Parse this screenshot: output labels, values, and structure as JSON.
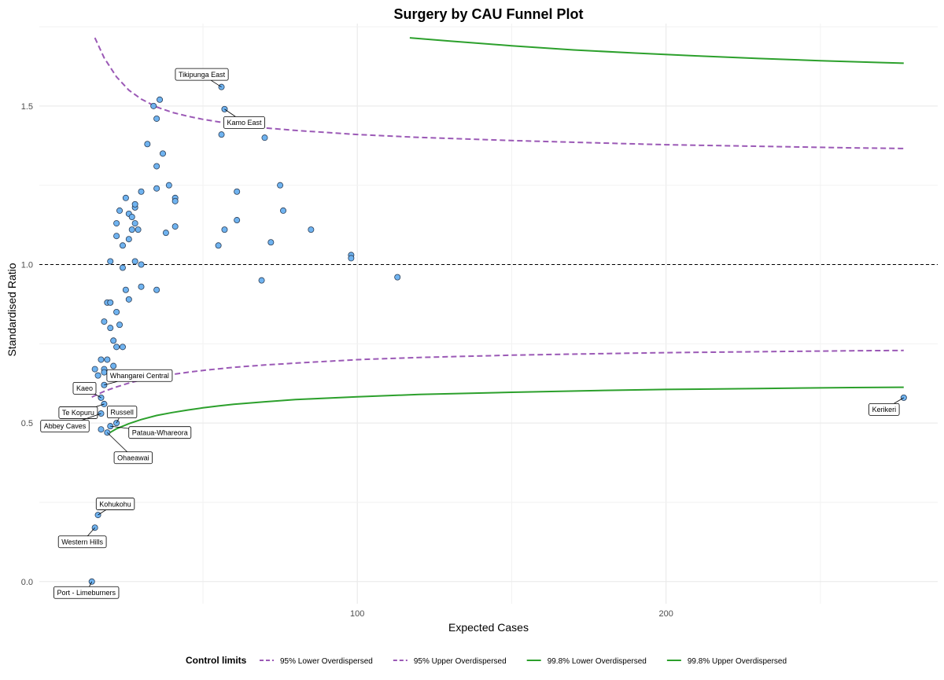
{
  "chart_data": {
    "type": "scatter",
    "title": "Surgery by CAU Funnel Plot",
    "xlabel": "Expected Cases",
    "ylabel": "Standardised Ratio",
    "xlim": [
      -3,
      288
    ],
    "ylim": [
      -0.07,
      1.76
    ],
    "x_ticks": [
      100,
      200
    ],
    "x_minor_ticks": [
      50,
      150,
      250
    ],
    "y_ticks": [
      0.0,
      0.5,
      1.0,
      1.5
    ],
    "y_tick_labels": [
      "0.0",
      "0.5",
      "1.0",
      "1.5"
    ],
    "y_minor_ticks": [
      0.25,
      0.75,
      1.25
    ],
    "grid": true,
    "reference_line": 1.0,
    "point_color": "#6fb3f0",
    "legend": {
      "title": "Control limits",
      "position": "bottom",
      "items": [
        {
          "label": "95% Lower Overdispersed",
          "color": "#9b59b6",
          "dash": true
        },
        {
          "label": "95% Upper Overdispersed",
          "color": "#9b59b6",
          "dash": true
        },
        {
          "label": "99.8% Lower Overdispersed",
          "color": "#2ca02c",
          "dash": false
        },
        {
          "label": "99.8% Upper Overdispersed",
          "color": "#2ca02c",
          "dash": false
        }
      ]
    },
    "limits": [
      {
        "name": "95% Lower Overdispersed",
        "color": "#9b59b6",
        "dash": true,
        "x": [
          14,
          18,
          22,
          26,
          30,
          35,
          40,
          45,
          50,
          55,
          60,
          70,
          80,
          100,
          120,
          150,
          180,
          200,
          230,
          260,
          277
        ],
        "y": [
          0.582,
          0.6,
          0.614,
          0.626,
          0.636,
          0.646,
          0.653,
          0.66,
          0.666,
          0.671,
          0.676,
          0.683,
          0.689,
          0.7,
          0.707,
          0.714,
          0.719,
          0.722,
          0.725,
          0.728,
          0.729
        ]
      },
      {
        "name": "95% Upper Overdispersed",
        "color": "#9b59b6",
        "dash": true,
        "x": [
          15,
          18,
          22,
          26,
          30,
          35,
          40,
          45,
          50,
          55,
          60,
          70,
          80,
          100,
          120,
          150,
          180,
          200,
          230,
          260,
          277
        ],
        "y": [
          1.715,
          1.652,
          1.592,
          1.55,
          1.522,
          1.497,
          1.48,
          1.468,
          1.458,
          1.45,
          1.443,
          1.431,
          1.423,
          1.41,
          1.401,
          1.391,
          1.383,
          1.378,
          1.373,
          1.368,
          1.366
        ]
      },
      {
        "name": "99.8% Lower Overdispersed",
        "color": "#2ca02c",
        "dash": false,
        "x": [
          19,
          22,
          26,
          30,
          35,
          40,
          45,
          50,
          55,
          60,
          70,
          80,
          100,
          120,
          150,
          180,
          200,
          230,
          260,
          277
        ],
        "y": [
          0.465,
          0.482,
          0.498,
          0.511,
          0.524,
          0.533,
          0.541,
          0.548,
          0.554,
          0.559,
          0.567,
          0.574,
          0.583,
          0.59,
          0.597,
          0.603,
          0.606,
          0.609,
          0.612,
          0.613
        ]
      },
      {
        "name": "99.8% Upper Overdispersed",
        "color": "#2ca02c",
        "dash": false,
        "x": [
          117,
          130,
          150,
          170,
          190,
          210,
          230,
          250,
          270,
          277
        ],
        "y": [
          1.715,
          1.705,
          1.69,
          1.677,
          1.667,
          1.658,
          1.65,
          1.643,
          1.637,
          1.635
        ]
      }
    ],
    "points": [
      {
        "x": 14,
        "y": 0.0
      },
      {
        "x": 15,
        "y": 0.17
      },
      {
        "x": 16,
        "y": 0.21
      },
      {
        "x": 17,
        "y": 0.53
      },
      {
        "x": 17,
        "y": 0.48
      },
      {
        "x": 18,
        "y": 0.56
      },
      {
        "x": 17,
        "y": 0.58
      },
      {
        "x": 18,
        "y": 0.62
      },
      {
        "x": 19,
        "y": 0.47
      },
      {
        "x": 20,
        "y": 0.49
      },
      {
        "x": 22,
        "y": 0.5
      },
      {
        "x": 15,
        "y": 0.67
      },
      {
        "x": 16,
        "y": 0.65
      },
      {
        "x": 17,
        "y": 0.7
      },
      {
        "x": 18,
        "y": 0.67
      },
      {
        "x": 18,
        "y": 0.66
      },
      {
        "x": 19,
        "y": 0.7
      },
      {
        "x": 21,
        "y": 0.68
      },
      {
        "x": 18,
        "y": 0.82
      },
      {
        "x": 19,
        "y": 0.88
      },
      {
        "x": 20,
        "y": 0.88
      },
      {
        "x": 20,
        "y": 0.8
      },
      {
        "x": 21,
        "y": 0.76
      },
      {
        "x": 22,
        "y": 0.74
      },
      {
        "x": 22,
        "y": 0.85
      },
      {
        "x": 23,
        "y": 0.81
      },
      {
        "x": 24,
        "y": 0.74
      },
      {
        "x": 25,
        "y": 0.92
      },
      {
        "x": 26,
        "y": 0.89
      },
      {
        "x": 20,
        "y": 1.01
      },
      {
        "x": 22,
        "y": 1.09
      },
      {
        "x": 22,
        "y": 1.13
      },
      {
        "x": 23,
        "y": 1.17
      },
      {
        "x": 24,
        "y": 1.06
      },
      {
        "x": 24,
        "y": 0.99
      },
      {
        "x": 25,
        "y": 1.21
      },
      {
        "x": 26,
        "y": 1.08
      },
      {
        "x": 26,
        "y": 1.16
      },
      {
        "x": 27,
        "y": 1.11
      },
      {
        "x": 27,
        "y": 1.15
      },
      {
        "x": 28,
        "y": 1.13
      },
      {
        "x": 28,
        "y": 1.18
      },
      {
        "x": 28,
        "y": 1.19
      },
      {
        "x": 29,
        "y": 1.11
      },
      {
        "x": 30,
        "y": 0.93
      },
      {
        "x": 28,
        "y": 1.01
      },
      {
        "x": 30,
        "y": 1.0
      },
      {
        "x": 30,
        "y": 1.23
      },
      {
        "x": 32,
        "y": 1.38
      },
      {
        "x": 34,
        "y": 1.5
      },
      {
        "x": 35,
        "y": 1.46
      },
      {
        "x": 35,
        "y": 1.31
      },
      {
        "x": 35,
        "y": 1.24
      },
      {
        "x": 35,
        "y": 0.92
      },
      {
        "x": 36,
        "y": 1.52
      },
      {
        "x": 37,
        "y": 1.35
      },
      {
        "x": 38,
        "y": 1.1
      },
      {
        "x": 39,
        "y": 1.25
      },
      {
        "x": 41,
        "y": 1.21
      },
      {
        "x": 41,
        "y": 1.2
      },
      {
        "x": 41,
        "y": 1.12
      },
      {
        "x": 55,
        "y": 1.06
      },
      {
        "x": 56,
        "y": 1.41
      },
      {
        "x": 56,
        "y": 1.56
      },
      {
        "x": 57,
        "y": 1.49
      },
      {
        "x": 57,
        "y": 1.11
      },
      {
        "x": 61,
        "y": 1.23
      },
      {
        "x": 61,
        "y": 1.14
      },
      {
        "x": 69,
        "y": 0.95
      },
      {
        "x": 70,
        "y": 1.4
      },
      {
        "x": 72,
        "y": 1.07
      },
      {
        "x": 75,
        "y": 1.25
      },
      {
        "x": 76,
        "y": 1.17
      },
      {
        "x": 85,
        "y": 1.11
      },
      {
        "x": 98,
        "y": 1.03
      },
      {
        "x": 98,
        "y": 1.02
      },
      {
        "x": 113,
        "y": 0.96
      },
      {
        "x": 277,
        "y": 0.58
      }
    ],
    "annotations": [
      {
        "label": "Tikipunga East",
        "x": 56,
        "y": 1.56
      },
      {
        "label": "Kamo East",
        "x": 57,
        "y": 1.49
      },
      {
        "label": "Kaeo",
        "x": 17,
        "y": 0.58
      },
      {
        "label": "Whangarei Central",
        "x": 18,
        "y": 0.62
      },
      {
        "label": "Te Kopuru",
        "x": 18,
        "y": 0.56
      },
      {
        "label": "Russell",
        "x": 22,
        "y": 0.5
      },
      {
        "label": "Pataua-Whareora",
        "x": 20,
        "y": 0.49
      },
      {
        "label": "Abbey Caves",
        "x": 17,
        "y": 0.53
      },
      {
        "label": "Ohaeawai",
        "x": 19,
        "y": 0.47
      },
      {
        "label": "Kohukohu",
        "x": 16,
        "y": 0.21
      },
      {
        "label": "Western Hills",
        "x": 15,
        "y": 0.17
      },
      {
        "label": "Port - Limeburners",
        "x": 14,
        "y": 0.0
      },
      {
        "label": "Kerikeri",
        "x": 277,
        "y": 0.58
      }
    ]
  }
}
